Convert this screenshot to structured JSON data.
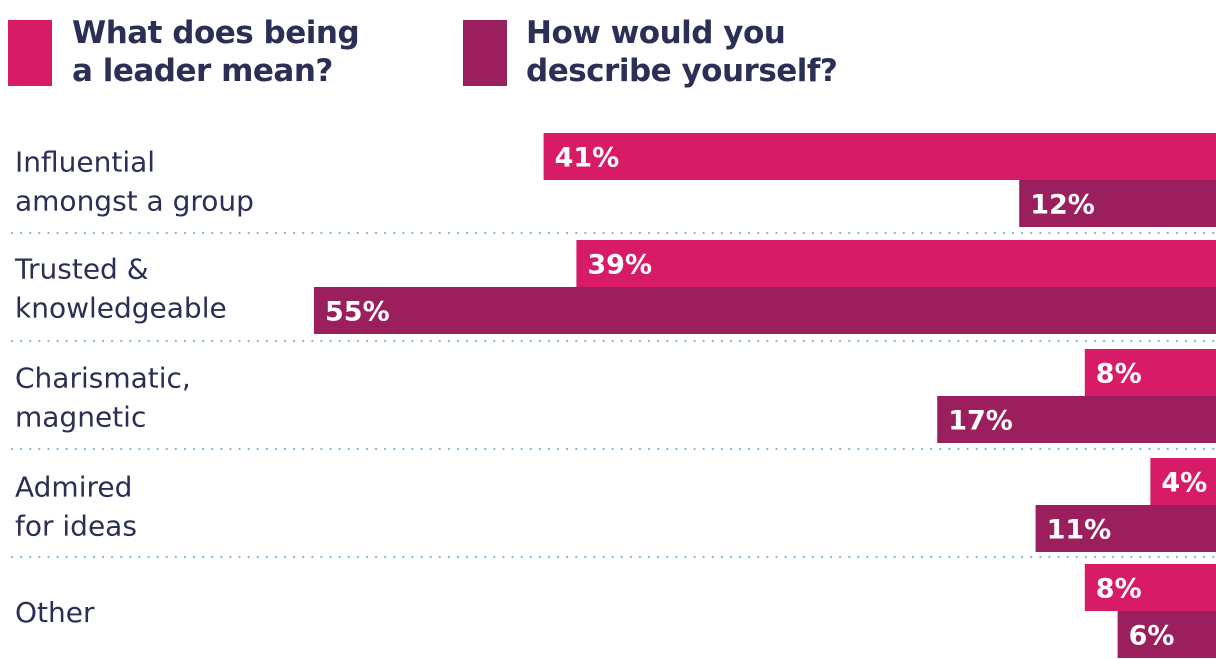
{
  "legend": [
    {
      "swatch_color": "#d81b66",
      "line1": "What does being",
      "line2": "a leader mean?"
    },
    {
      "swatch_color": "#9c1f5d",
      "line1": "How would you",
      "line2": "describe yourself?"
    }
  ],
  "chart_data": {
    "type": "bar",
    "orientation": "horizontal",
    "categories": [
      [
        "Influential",
        "amongst a group"
      ],
      [
        "Trusted &",
        "knowledgeable"
      ],
      [
        "Charismatic,",
        "magnetic"
      ],
      [
        "Admired",
        "for ideas"
      ],
      [
        "Other"
      ]
    ],
    "series": [
      {
        "name": "What does being a leader mean?",
        "color": "#d81b66",
        "values": [
          41,
          39,
          8,
          4,
          8
        ],
        "labels": [
          "41%",
          "39%",
          "8%",
          "4%",
          "8%"
        ]
      },
      {
        "name": "How would you describe yourself?",
        "color": "#9c1f5d",
        "values": [
          12,
          55,
          17,
          11,
          6
        ],
        "labels": [
          "12%",
          "55%",
          "17%",
          "11%",
          "6%"
        ]
      }
    ],
    "separator_style": "dotted",
    "separator_color": "#7fb8e0",
    "category_label_color": "#2b2f55",
    "value_label_color": "#ffffff"
  }
}
